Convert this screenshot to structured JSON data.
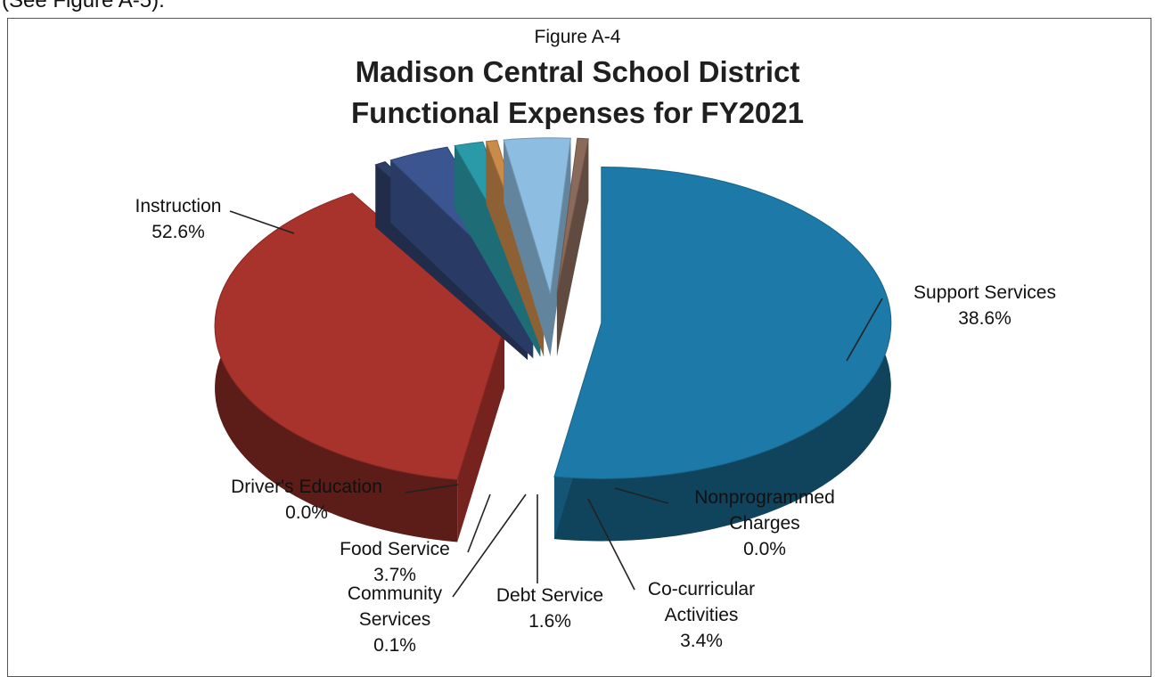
{
  "page": {
    "cutoff_text": "(See Figure A-5)."
  },
  "chart_data": {
    "type": "pie",
    "figure_label": "Figure A-4",
    "title": [
      "Madison Central School District",
      "Functional Expenses for FY2021"
    ],
    "slices": [
      {
        "label": "Instruction",
        "pct_label": "52.6%",
        "value": 52.6,
        "color": "#1d7aa8"
      },
      {
        "label": "Support Services",
        "pct_label": "38.6%",
        "value": 38.6,
        "color": "#a8322c"
      },
      {
        "label": "Nonprogrammed Charges",
        "label_lines": [
          "Nonprogrammed",
          "Charges"
        ],
        "pct_label": "0.0%",
        "value": 0.0,
        "color": "#2e3f68"
      },
      {
        "label": "Co-curricular Activities",
        "label_lines": [
          "Co-curricular",
          "Activities"
        ],
        "pct_label": "3.4%",
        "value": 3.4,
        "color": "#3a5590"
      },
      {
        "label": "Debt Service",
        "pct_label": "1.6%",
        "value": 1.6,
        "color": "#2a9aa8"
      },
      {
        "label": "Community Services",
        "label_lines": [
          "Community",
          "Services"
        ],
        "pct_label": "0.1%",
        "value": 0.1,
        "color": "#c98a4a"
      },
      {
        "label": "Food Service",
        "pct_label": "3.7%",
        "value": 3.7,
        "color": "#8dbde0"
      },
      {
        "label": "Driver's Education",
        "pct_label": "0.0%",
        "value": 0.0,
        "color": "#8a6a5a"
      }
    ]
  }
}
